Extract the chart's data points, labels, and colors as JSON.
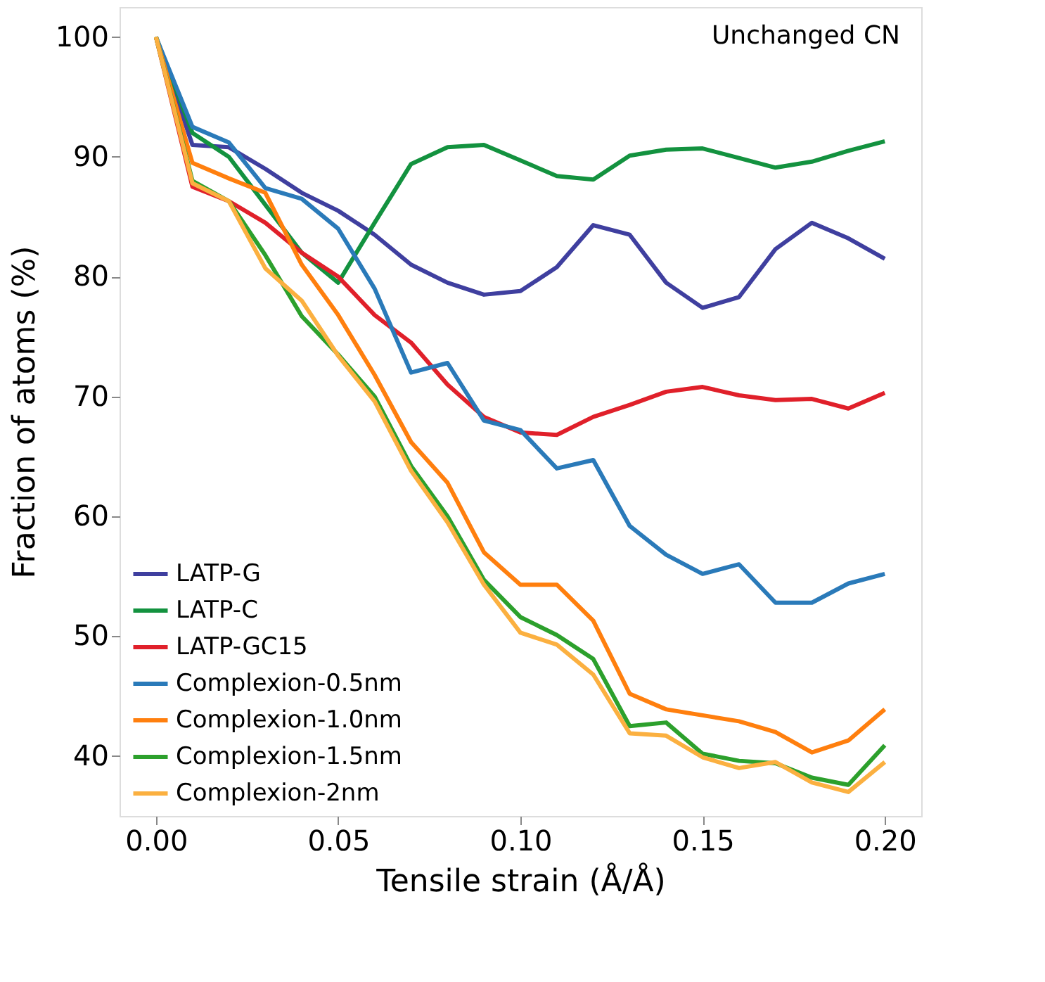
{
  "chart_data": {
    "type": "line",
    "xlabel": "Tensile strain (Å/Å)",
    "ylabel": "Fraction of atoms (%)",
    "annotations": [
      "Unchanged CN"
    ],
    "x": [
      0,
      0.01,
      0.02,
      0.03,
      0.04,
      0.05,
      0.06,
      0.07,
      0.08,
      0.09,
      0.1,
      0.11,
      0.12,
      0.13,
      0.14,
      0.15,
      0.16,
      0.17,
      0.18,
      0.19,
      0.2
    ],
    "xlim": [
      -0.01,
      0.21
    ],
    "xticks": [
      {
        "value": 0,
        "label": "0.00"
      },
      {
        "value": 0.05,
        "label": "0.05"
      },
      {
        "value": 0.1,
        "label": "0.10"
      },
      {
        "value": 0.15,
        "label": "0.15"
      },
      {
        "value": 0.2,
        "label": "0.20"
      }
    ],
    "ylim": [
      35,
      102.5
    ],
    "yticks": [
      40,
      50,
      60,
      70,
      80,
      90,
      100
    ],
    "grid": false,
    "legend": "bottom left",
    "series": [
      {
        "name": "LATP-G",
        "color": "#3f3f9f",
        "values": [
          100,
          91,
          90.8,
          89,
          87,
          85.5,
          83.5,
          81,
          79.5,
          78.5,
          78.8,
          80.8,
          84.3,
          83.5,
          79.5,
          77.4,
          78.3,
          82.3,
          84.5,
          83.2,
          81.5
        ]
      },
      {
        "name": "LATP-C",
        "color": "#13923f",
        "values": [
          100,
          92,
          90,
          86,
          82,
          79.5,
          84.5,
          89.4,
          90.8,
          91,
          89.7,
          88.4,
          88.1,
          90.1,
          90.6,
          90.7,
          89.9,
          89.1,
          89.6,
          90.5,
          91.3
        ]
      },
      {
        "name": "LATP-GC15",
        "color": "#e0202a",
        "values": [
          100,
          87.5,
          86.3,
          84.5,
          82,
          80,
          76.8,
          74.5,
          71,
          68.3,
          67,
          66.8,
          68.3,
          69.3,
          70.4,
          70.8,
          70.1,
          69.7,
          69.8,
          69,
          70.3
        ]
      },
      {
        "name": "Complexion-0.5nm",
        "color": "#2a7ab9",
        "values": [
          100,
          92.5,
          91.2,
          87.4,
          86.5,
          84,
          79,
          72,
          72.8,
          68,
          67.2,
          64,
          64.7,
          59.2,
          56.8,
          55.2,
          56,
          52.8,
          52.8,
          54.4,
          55.2
        ]
      },
      {
        "name": "Complexion-1.0nm",
        "color": "#ff7f0e",
        "values": [
          100,
          89.5,
          88.2,
          87,
          81,
          76.8,
          71.8,
          66.2,
          62.8,
          57,
          54.3,
          54.3,
          51.3,
          45.2,
          43.9,
          43.4,
          42.9,
          42,
          40.3,
          41.3,
          43.9
        ]
      },
      {
        "name": "Complexion-1.5nm",
        "color": "#2ca02c",
        "values": [
          100,
          88,
          86.3,
          81.8,
          76.7,
          73.5,
          70,
          64.2,
          60,
          54.7,
          51.6,
          50.1,
          48.1,
          42.5,
          42.8,
          40.2,
          39.6,
          39.4,
          38.2,
          37.6,
          40.9
        ]
      },
      {
        "name": "Complexion-2nm",
        "color": "#fbb040",
        "values": [
          100,
          87.8,
          86.3,
          80.7,
          78,
          73.4,
          69.6,
          63.8,
          59.5,
          54.3,
          50.3,
          49.3,
          46.8,
          41.9,
          41.7,
          39.9,
          39,
          39.5,
          37.8,
          37,
          39.5
        ]
      }
    ]
  }
}
